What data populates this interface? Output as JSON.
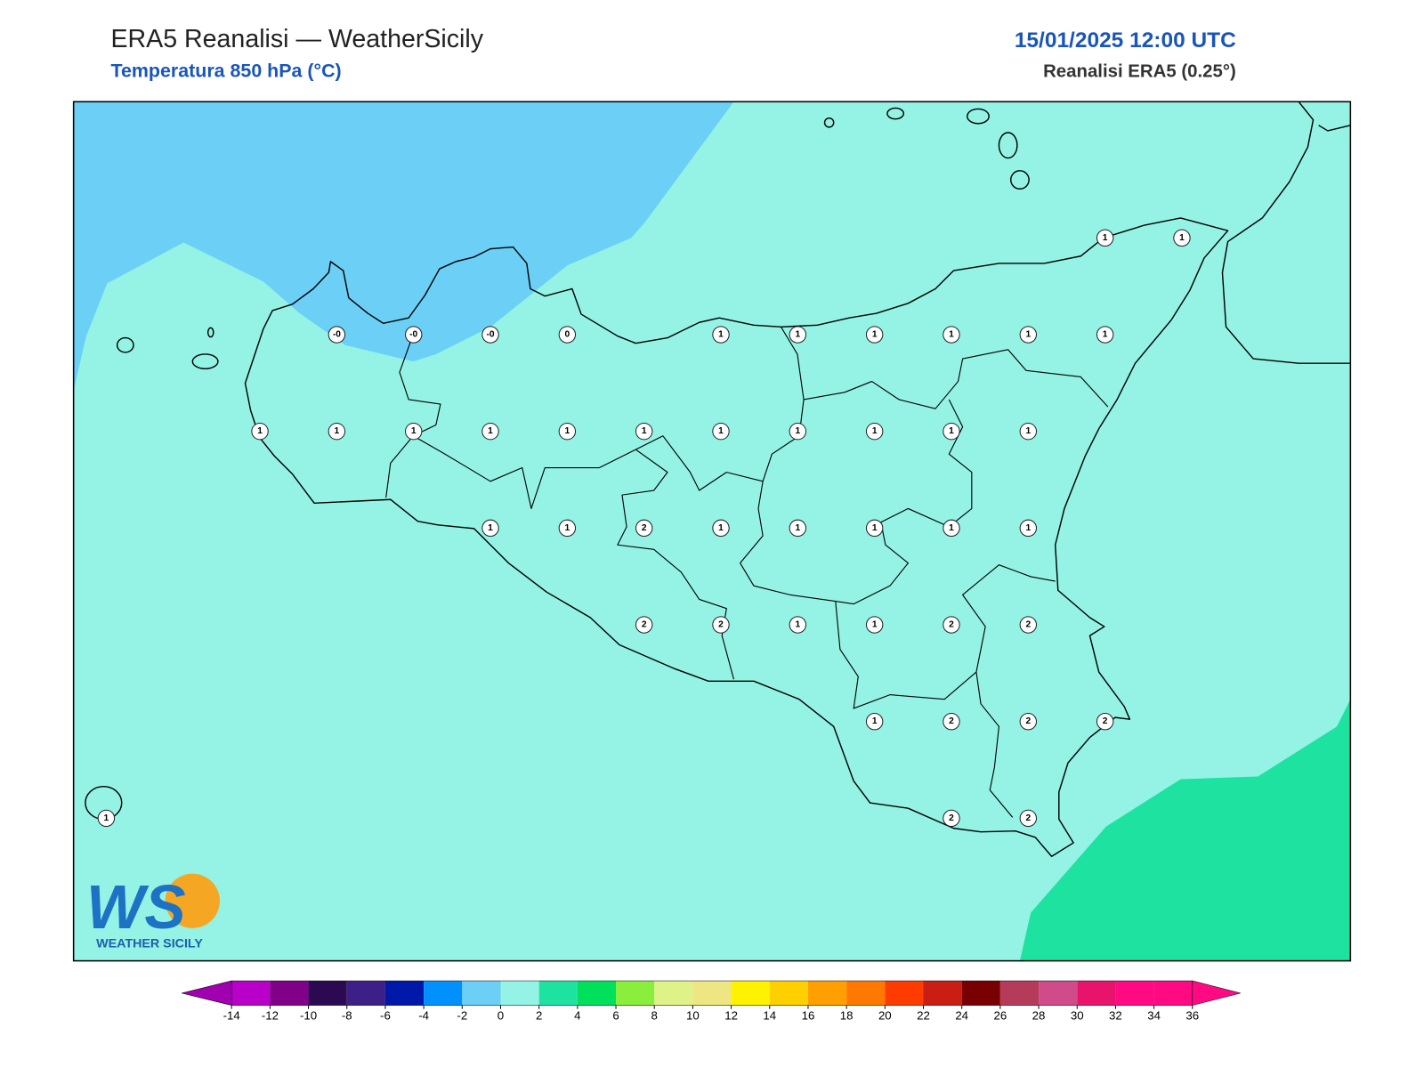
{
  "header": {
    "title": "ERA5 Reanalisi — WeatherSicily",
    "subtitle": "Temperatura 850 hPa (°C)",
    "datetime": "15/01/2025 12:00 UTC",
    "source": "Reanalisi ERA5 (0.25°)"
  },
  "grid": {
    "rows": [
      [
        null,
        null,
        null,
        null,
        null,
        null,
        null,
        null,
        null,
        null,
        null,
        null,
        null,
        1,
        1
      ],
      [
        null,
        null,
        null,
        {
          "value": 0,
          "label": "-0"
        },
        {
          "value": 0,
          "label": "-0"
        },
        {
          "value": 0,
          "label": "-0"
        },
        0,
        null,
        1,
        1,
        1,
        1,
        1,
        1,
        null
      ],
      [
        null,
        null,
        1,
        1,
        1,
        1,
        1,
        1,
        1,
        1,
        1,
        1,
        1,
        null,
        null
      ],
      [
        null,
        null,
        null,
        null,
        null,
        1,
        1,
        2,
        1,
        1,
        1,
        1,
        1,
        null,
        null
      ],
      [
        null,
        null,
        null,
        null,
        null,
        null,
        null,
        2,
        2,
        1,
        1,
        2,
        2,
        null,
        null
      ],
      [
        null,
        null,
        null,
        null,
        null,
        null,
        null,
        null,
        null,
        null,
        1,
        2,
        2,
        2,
        null
      ],
      [
        1,
        null,
        null,
        null,
        null,
        null,
        null,
        null,
        null,
        null,
        null,
        2,
        2,
        null,
        null
      ]
    ]
  },
  "colorbar": {
    "ticks": [
      -14,
      -12,
      -10,
      -8,
      -6,
      -4,
      -2,
      0,
      2,
      4,
      6,
      8,
      10,
      12,
      14,
      16,
      18,
      20,
      22,
      24,
      26,
      28,
      30,
      32,
      34,
      36
    ],
    "colors": [
      "#b800c8",
      "#800088",
      "#2c0a52",
      "#3c2088",
      "#0018a8",
      "#0090ff",
      "#6ccff6",
      "#94f3e4",
      "#1ee3a0",
      "#00e05a",
      "#8aee3c",
      "#dff28a",
      "#ede682",
      "#fff200",
      "#ffd000",
      "#ffa000",
      "#ff7800",
      "#ff3c00",
      "#c81e14",
      "#780000",
      "#b43c5a",
      "#d04b8a",
      "#e8146c",
      "#ff0a82",
      "#ff0a82"
    ],
    "under": "#a000b0",
    "over": "#ff0a82"
  },
  "logo": {
    "mark": "WS",
    "text": "WEATHER SICILY"
  }
}
